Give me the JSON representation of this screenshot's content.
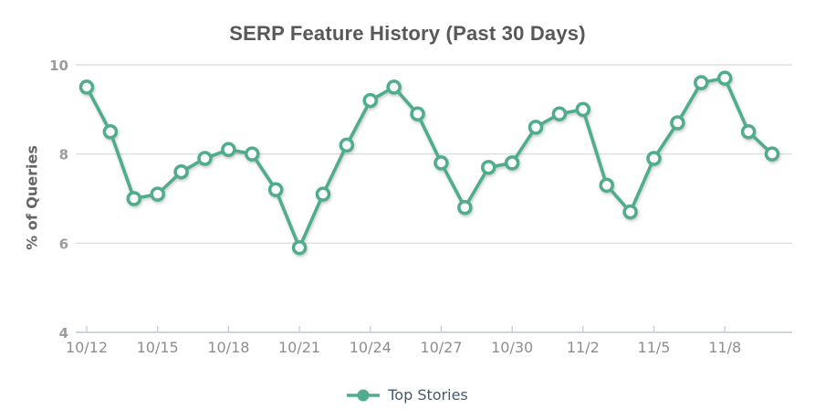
{
  "title": "SERP Feature History (Past 30 Days)",
  "colors": {
    "series": "#4FAD8B",
    "marker_fill": "#FFFFFF",
    "title_text": "#58585A",
    "axis_title_text": "#666666",
    "y_tick_label": "#9C9C9C",
    "x_tick_label": "#8E8E8E",
    "gridline": "#D8D8D8",
    "axis_line": "#C6CFDB",
    "legend_text": "#47586E",
    "background": "#FFFFFF"
  },
  "chart_data": {
    "type": "line",
    "title": "SERP Feature History (Past 30 Days)",
    "xlabel": "",
    "ylabel": "% of Queries",
    "ylim": [
      4,
      10
    ],
    "yticks": [
      4,
      6,
      8,
      10
    ],
    "grid": true,
    "legend_position": "bottom",
    "x": [
      "10/12",
      "10/13",
      "10/14",
      "10/15",
      "10/16",
      "10/17",
      "10/18",
      "10/19",
      "10/20",
      "10/21",
      "10/22",
      "10/23",
      "10/24",
      "10/25",
      "10/26",
      "10/27",
      "10/28",
      "10/29",
      "10/30",
      "10/31",
      "11/1",
      "11/2",
      "11/3",
      "11/4",
      "11/5",
      "11/6",
      "11/7",
      "11/8",
      "11/9",
      "11/10"
    ],
    "xtick_labels": [
      "10/12",
      "10/15",
      "10/18",
      "10/21",
      "10/24",
      "10/27",
      "10/30",
      "11/2",
      "11/5",
      "11/8"
    ],
    "series": [
      {
        "name": "Top Stories",
        "values": [
          9.5,
          8.5,
          7.0,
          7.1,
          7.6,
          7.9,
          8.1,
          8.0,
          7.2,
          5.9,
          7.1,
          8.2,
          9.2,
          9.5,
          8.9,
          7.8,
          6.8,
          7.7,
          7.8,
          8.6,
          8.9,
          9.0,
          7.3,
          6.7,
          7.9,
          8.7,
          9.6,
          9.7,
          8.5,
          8.0
        ]
      }
    ]
  }
}
